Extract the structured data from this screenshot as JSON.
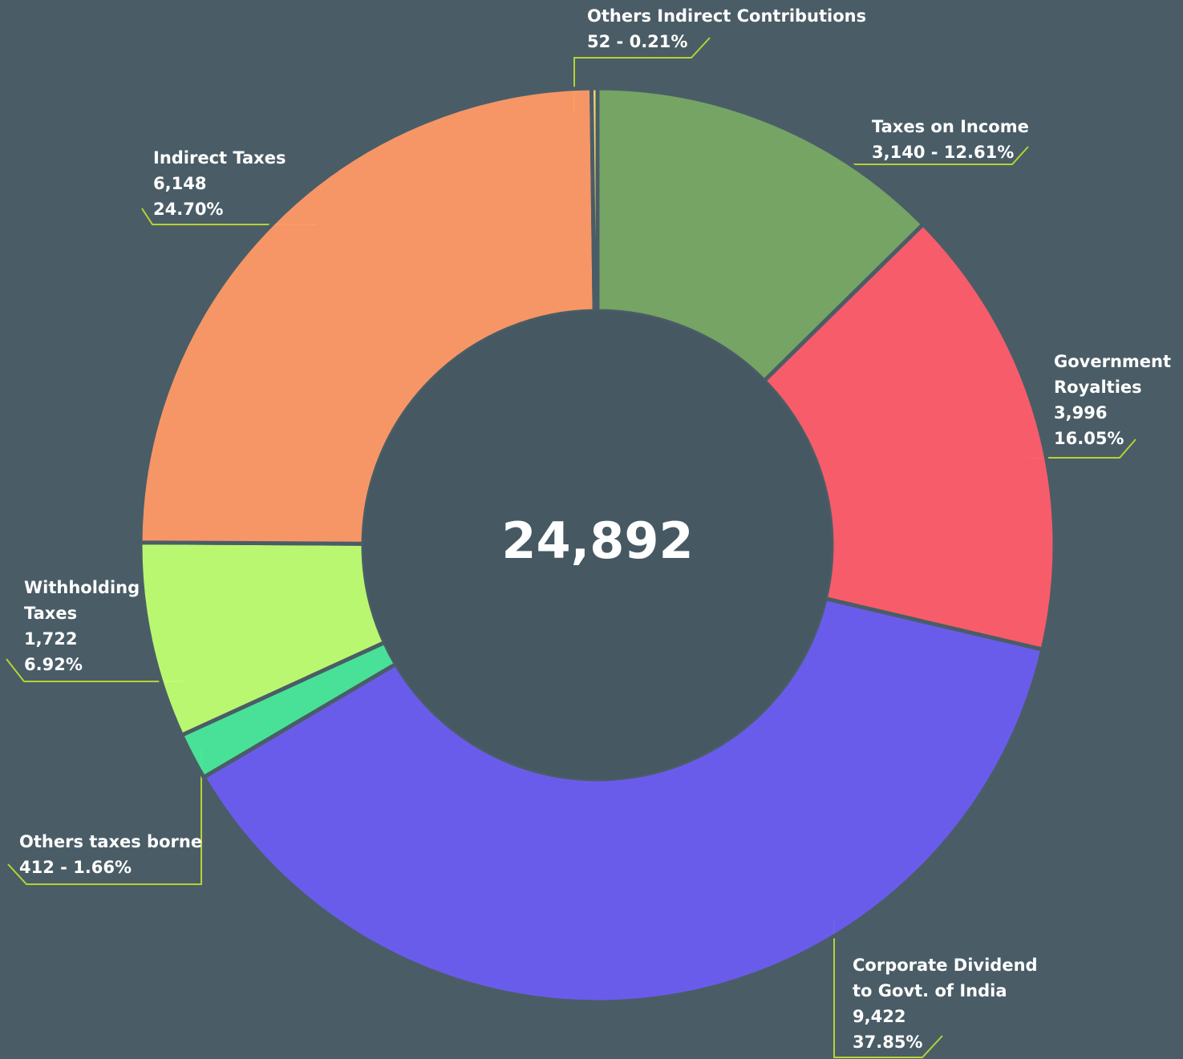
{
  "chart_data": {
    "type": "donut",
    "categories": [
      "Taxes on Income",
      "Government Royalties",
      "Corporate Dividend to Govt. of India",
      "Others taxes borne",
      "Withholding Taxes",
      "Indirect Taxes",
      "Others Indirect Contributions"
    ],
    "values": [
      3140,
      3996,
      9422,
      412,
      1722,
      6148,
      52
    ],
    "value_labels": [
      "3,140",
      "3,996",
      "9,422",
      "412",
      "1,722",
      "6,148",
      "52"
    ],
    "percents": [
      12.61,
      16.05,
      37.85,
      1.66,
      6.92,
      24.7,
      0.21
    ],
    "percent_labels": [
      "12.61%",
      "16.05%",
      "37.85%",
      "1.66%",
      "6.92%",
      "24.70%",
      "0.21%"
    ],
    "separator": "-",
    "colors": [
      "#77a865",
      "#ff5c6a",
      "#6b5cf2",
      "#48e89a",
      "#c0ff72",
      "#ff9966",
      "#ffdc73"
    ],
    "total_label": "24,892"
  }
}
